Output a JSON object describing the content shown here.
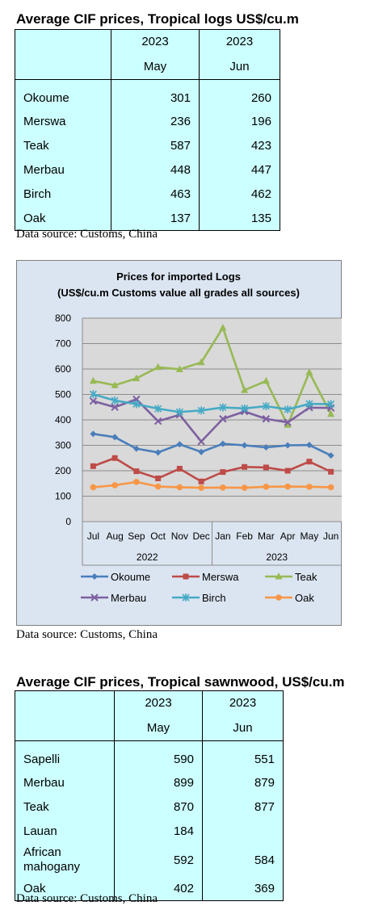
{
  "table1": {
    "title": "Average CIF prices, Tropical logs US$/cu.m",
    "col_years": [
      "2023",
      "2023"
    ],
    "col_months": [
      "May",
      "Jun"
    ],
    "rows": [
      {
        "name": "Okoume",
        "may": "301",
        "jun": "260"
      },
      {
        "name": "Merswa",
        "may": "236",
        "jun": "196"
      },
      {
        "name": "Teak",
        "may": "587",
        "jun": "423"
      },
      {
        "name": "Merbau",
        "may": "448",
        "jun": "447"
      },
      {
        "name": "Birch",
        "may": "463",
        "jun": "462"
      },
      {
        "name": "Oak",
        "may": "137",
        "jun": "135"
      }
    ],
    "source": "Data source: Customs, China"
  },
  "chart_source": "Data source: Customs, China",
  "chart_data": {
    "type": "line",
    "title": "Prices for imported Logs",
    "subtitle": "(US$/cu.m Customs value all grades all sources)",
    "categories": [
      "Jul",
      "Aug",
      "Sep",
      "Oct",
      "Nov",
      "Dec",
      "Jan",
      "Feb",
      "Mar",
      "Apr",
      "May",
      "Jun"
    ],
    "year_groups": [
      {
        "label": "2022",
        "span": 6
      },
      {
        "label": "2023",
        "span": 6
      }
    ],
    "ylim": [
      0,
      800
    ],
    "yticks": [
      0,
      100,
      200,
      300,
      400,
      500,
      600,
      700,
      800
    ],
    "grid": true,
    "legend_position": "bottom",
    "series": [
      {
        "name": "Okoume",
        "color": "#4a7ebb",
        "marker": "diamond",
        "values": [
          345,
          332,
          287,
          272,
          304,
          274,
          306,
          300,
          292,
          300,
          301,
          260
        ]
      },
      {
        "name": "Merswa",
        "color": "#be4b48",
        "marker": "square",
        "values": [
          218,
          250,
          198,
          170,
          208,
          158,
          195,
          215,
          213,
          200,
          236,
          196
        ]
      },
      {
        "name": "Teak",
        "color": "#98b954",
        "marker": "triangle",
        "values": [
          553,
          536,
          563,
          607,
          599,
          626,
          762,
          517,
          553,
          380,
          587,
          423
        ]
      },
      {
        "name": "Merbau",
        "color": "#7d60a0",
        "marker": "x",
        "values": [
          474,
          450,
          481,
          395,
          420,
          315,
          404,
          433,
          404,
          390,
          448,
          447
        ]
      },
      {
        "name": "Birch",
        "color": "#46aac5",
        "marker": "star",
        "values": [
          501,
          476,
          462,
          444,
          431,
          437,
          449,
          445,
          454,
          441,
          463,
          462
        ]
      },
      {
        "name": "Oak",
        "color": "#f79646",
        "marker": "circle",
        "values": [
          135,
          143,
          156,
          138,
          135,
          133,
          134,
          133,
          137,
          138,
          137,
          135
        ]
      }
    ]
  },
  "table2": {
    "title": "Average CIF prices, Tropical sawnwood, US$/cu.m",
    "col_years": [
      "2023",
      "2023"
    ],
    "col_months": [
      "May",
      "Jun"
    ],
    "rows": [
      {
        "name": "Sapelli",
        "may": "590",
        "jun": "551"
      },
      {
        "name": "Merbau",
        "may": "899",
        "jun": "879"
      },
      {
        "name": "Teak",
        "may": "870",
        "jun": "877"
      },
      {
        "name": "Lauan",
        "may": "184",
        "jun": ""
      },
      {
        "name": "African mahogany",
        "may": "592",
        "jun": "584"
      },
      {
        "name": "Oak",
        "may": "402",
        "jun": "369"
      }
    ],
    "source": "Data source: Customs, China"
  }
}
